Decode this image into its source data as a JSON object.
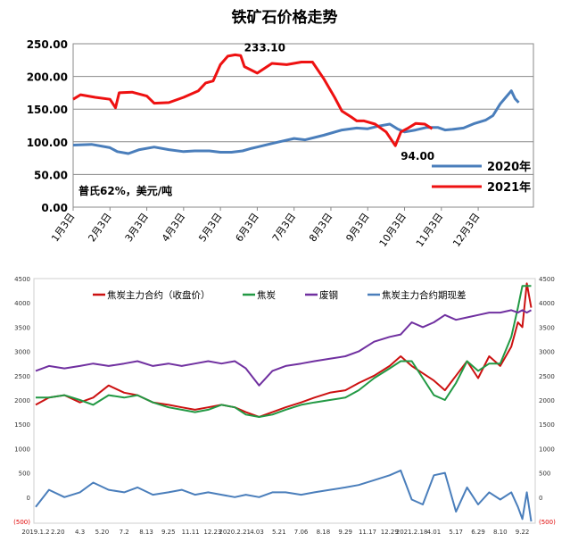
{
  "chart_data": [
    {
      "type": "line",
      "title": "铁矿石价格走势",
      "annotation": "普氏62%，美元/吨",
      "ylim": [
        0,
        250
      ],
      "yticks": [
        "250.00",
        "200.00",
        "150.00",
        "100.00",
        "50.00",
        "0.00"
      ],
      "xticks": [
        "1月3日",
        "2月3日",
        "3月3日",
        "4月3日",
        "5月3日",
        "6月3日",
        "7月3日",
        "8月3日",
        "9月3日",
        "10月3日",
        "11月3日",
        "12月3日"
      ],
      "grid": true,
      "legend": "bottom-right",
      "data_labels": [
        {
          "series": "2021年",
          "text": "233.10",
          "x": 4.4,
          "y": 233.1
        },
        {
          "series": "2021年",
          "text": "94.00",
          "x": 8.75,
          "y": 94.0
        }
      ],
      "series": [
        {
          "name": "2020年",
          "color": "#4a7ebb",
          "x": [
            0,
            0.5,
            1.0,
            1.2,
            1.5,
            1.8,
            2.2,
            2.6,
            3.0,
            3.3,
            3.7,
            4.0,
            4.3,
            4.6,
            4.85,
            5.0,
            5.3,
            5.6,
            6.0,
            6.3,
            6.8,
            7.3,
            7.7,
            8.0,
            8.3,
            8.6,
            8.8,
            9.0,
            9.3,
            9.6,
            9.9,
            10.1,
            10.3,
            10.6,
            10.9,
            11.2,
            11.4,
            11.6,
            11.75,
            11.9,
            12.0,
            12.1
          ],
          "y": [
            95,
            96,
            91,
            85,
            82,
            88,
            92,
            88,
            85,
            86,
            86,
            84,
            84,
            86,
            90,
            92,
            96,
            100,
            105,
            103,
            110,
            118,
            121,
            120,
            124,
            127,
            120,
            115,
            118,
            122,
            122,
            118,
            119,
            121,
            128,
            133,
            140,
            158,
            168,
            178,
            166,
            160
          ]
        },
        {
          "name": "2021年",
          "color": "#ee1111",
          "x": [
            0,
            0.2,
            0.6,
            1.0,
            1.15,
            1.25,
            1.6,
            2.0,
            2.2,
            2.6,
            3.0,
            3.4,
            3.6,
            3.8,
            4.0,
            4.2,
            4.4,
            4.55,
            4.65,
            5.0,
            5.4,
            5.8,
            6.2,
            6.5,
            6.8,
            7.1,
            7.3,
            7.55,
            7.7,
            7.9,
            8.2,
            8.5,
            8.75,
            8.9,
            9.0,
            9.1,
            9.3,
            9.55,
            9.75
          ],
          "y": [
            165,
            172,
            168,
            165,
            152,
            175,
            176,
            170,
            159,
            160,
            168,
            178,
            190,
            193,
            218,
            231,
            233.1,
            232,
            215,
            205,
            220,
            218,
            222,
            222,
            197,
            168,
            147,
            138,
            132,
            132,
            127,
            115,
            94,
            115,
            118,
            121,
            128,
            127,
            120
          ]
        }
      ]
    },
    {
      "type": "line",
      "ylim_left": [
        -500,
        4500
      ],
      "ylim_right": [
        -500,
        4500
      ],
      "yticks": [
        "4500",
        "4000",
        "3500",
        "3000",
        "2500",
        "2000",
        "1500",
        "1000",
        "500",
        "0",
        "(500)"
      ],
      "xticks": [
        "2019.1.2",
        "2.20",
        "4.3",
        "5.20",
        "7.2",
        "8.13",
        "9.25",
        "11.11",
        "12.23",
        "2020.2.21",
        "4.03",
        "5.21",
        "7.06",
        "8.18",
        "9.29",
        "11.17",
        "12.29",
        "2021.2.18",
        "4.01",
        "5.17",
        "6.29",
        "8.10",
        "9.22"
      ],
      "grid": false,
      "legend": "top",
      "series": [
        {
          "name": "焦炭主力合约（收盘价）",
          "color": "#cc1111",
          "x": [
            0,
            0.6,
            1.3,
            2.0,
            2.6,
            3.3,
            4.0,
            4.6,
            5.3,
            6.0,
            6.6,
            7.2,
            7.8,
            8.4,
            9.0,
            9.5,
            10.1,
            10.7,
            11.3,
            12.0,
            12.6,
            13.3,
            14.0,
            14.6,
            15.3,
            16.0,
            16.5,
            17.0,
            17.5,
            18.0,
            18.5,
            19.0,
            19.5,
            20.0,
            20.5,
            21.0,
            21.5,
            21.8,
            22.0,
            22.2,
            22.4
          ],
          "y": [
            1900,
            2050,
            2100,
            1950,
            2050,
            2300,
            2150,
            2100,
            1950,
            1900,
            1850,
            1800,
            1850,
            1900,
            1850,
            1750,
            1650,
            1750,
            1850,
            1950,
            2050,
            2150,
            2200,
            2350,
            2500,
            2700,
            2900,
            2700,
            2550,
            2400,
            2200,
            2500,
            2800,
            2450,
            2900,
            2700,
            3100,
            3600,
            3500,
            4400,
            3900
          ]
        },
        {
          "name": "焦炭",
          "color": "#229944",
          "x": [
            0,
            0.6,
            1.3,
            2.0,
            2.6,
            3.3,
            4.0,
            4.6,
            5.3,
            6.0,
            6.6,
            7.2,
            7.8,
            8.4,
            9.0,
            9.5,
            10.1,
            10.7,
            11.3,
            12.0,
            12.6,
            13.3,
            14.0,
            14.6,
            15.3,
            16.0,
            16.5,
            17.0,
            17.5,
            18.0,
            18.5,
            19.0,
            19.5,
            20.0,
            20.5,
            21.0,
            21.5,
            21.8,
            22.0,
            22.2,
            22.4
          ],
          "y": [
            2050,
            2050,
            2100,
            2000,
            1900,
            2100,
            2050,
            2100,
            1950,
            1850,
            1800,
            1750,
            1800,
            1900,
            1850,
            1700,
            1650,
            1700,
            1800,
            1900,
            1950,
            2000,
            2050,
            2200,
            2450,
            2650,
            2800,
            2800,
            2450,
            2100,
            2000,
            2350,
            2800,
            2600,
            2750,
            2750,
            3300,
            3900,
            4350,
            4350,
            4350
          ]
        },
        {
          "name": "废钢",
          "color": "#7030a0",
          "x": [
            0,
            0.6,
            1.3,
            2.0,
            2.6,
            3.3,
            4.0,
            4.6,
            5.3,
            6.0,
            6.6,
            7.2,
            7.8,
            8.4,
            9.0,
            9.5,
            10.1,
            10.7,
            11.3,
            12.0,
            12.6,
            13.3,
            14.0,
            14.6,
            15.3,
            16.0,
            16.5,
            17.0,
            17.5,
            18.0,
            18.5,
            19.0,
            19.5,
            20.0,
            20.5,
            21.0,
            21.5,
            21.8,
            22.0,
            22.2,
            22.4
          ],
          "y": [
            2600,
            2700,
            2650,
            2700,
            2750,
            2700,
            2750,
            2800,
            2700,
            2750,
            2700,
            2750,
            2800,
            2750,
            2800,
            2650,
            2300,
            2600,
            2700,
            2750,
            2800,
            2850,
            2900,
            3000,
            3200,
            3300,
            3350,
            3600,
            3500,
            3600,
            3750,
            3650,
            3700,
            3750,
            3800,
            3800,
            3850,
            3800,
            3850,
            3800,
            3850
          ]
        },
        {
          "name": "焦炭主力合约期现差",
          "color": "#4a7ebb",
          "axis": "right",
          "x": [
            0,
            0.6,
            1.3,
            2.0,
            2.6,
            3.3,
            4.0,
            4.6,
            5.3,
            6.0,
            6.6,
            7.2,
            7.8,
            8.4,
            9.0,
            9.5,
            10.1,
            10.7,
            11.3,
            12.0,
            12.6,
            13.3,
            14.0,
            14.6,
            15.3,
            16.0,
            16.5,
            17.0,
            17.5,
            18.0,
            18.5,
            19.0,
            19.5,
            20.0,
            20.5,
            21.0,
            21.5,
            21.8,
            22.0,
            22.2,
            22.4
          ],
          "y": [
            -200,
            150,
            0,
            100,
            300,
            150,
            100,
            200,
            50,
            100,
            150,
            50,
            100,
            50,
            0,
            50,
            0,
            100,
            100,
            50,
            100,
            150,
            200,
            250,
            350,
            450,
            550,
            -50,
            -150,
            450,
            500,
            -300,
            200,
            -150,
            100,
            -50,
            100,
            -200,
            -450,
            100,
            -500
          ]
        }
      ]
    }
  ]
}
